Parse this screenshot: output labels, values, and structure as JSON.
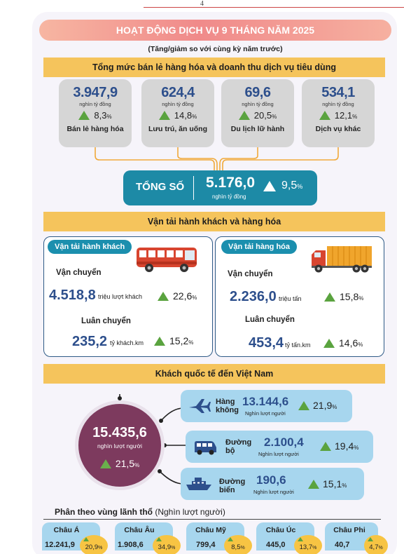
{
  "page_number": "4",
  "banner": "HOẠT ĐỘNG DỊCH VỤ 9 THÁNG NĂM 2025",
  "subtitle": "(Tăng/giảm so với cùng kỳ năm trước)",
  "retail": {
    "title": "Tổng mức bán lẻ hàng hóa và doanh thu dịch vụ tiêu dùng",
    "cards": [
      {
        "value": "3.947,9",
        "unit": "nghìn tỷ đồng",
        "pct": "8,3",
        "label": "Bán lẻ hàng hóa"
      },
      {
        "value": "624,4",
        "unit": "nghìn tỷ đồng",
        "pct": "14,8",
        "label": "Lưu trú, ăn uống"
      },
      {
        "value": "69,6",
        "unit": "nghìn tỷ đồng",
        "pct": "20,5",
        "label": "Du lịch lữ hành"
      },
      {
        "value": "534,1",
        "unit": "nghìn tỷ đồng",
        "pct": "12,1",
        "label": "Dịch vụ khác"
      }
    ],
    "total": {
      "label": "TỔNG SỐ",
      "value": "5.176,0",
      "unit": "nghìn tỷ đồng",
      "pct": "9,5"
    }
  },
  "transport": {
    "title": "Vận tải hành khách và hàng hóa",
    "passenger": {
      "label": "Vận tải hành khách",
      "carry_label": "Vận chuyển",
      "carry_value": "4.518,8",
      "carry_unit": "triệu lượt khách",
      "carry_pct": "22,6",
      "rotation_label": "Luân chuyển",
      "rotation_value": "235,2",
      "rotation_unit": "tỷ khách.km",
      "rotation_pct": "15,2"
    },
    "cargo": {
      "label": "Vận tải hàng hóa",
      "carry_label": "Vận chuyển",
      "carry_value": "2.236,0",
      "carry_unit": "triệu tấn",
      "carry_pct": "15,8",
      "rotation_label": "Luân chuyển",
      "rotation_value": "453,4",
      "rotation_unit": "tỷ tấn.km",
      "rotation_pct": "14,6"
    }
  },
  "visitors": {
    "title": "Khách quốc tế đến Việt Nam",
    "total_value": "15.435,6",
    "total_unit": "nghìn lượt người",
    "total_pct": "21,5",
    "modes": [
      {
        "label_1": "Hàng",
        "label_2": "không",
        "value": "13.144,6",
        "unit": "Nghìn lượt người",
        "pct": "21,9",
        "icon": "airplane-icon"
      },
      {
        "label_1": "Đường",
        "label_2": "bộ",
        "value": "2.100,4",
        "unit": "Nghìn lượt người",
        "pct": "19,4",
        "icon": "van-icon"
      },
      {
        "label_1": "Đường",
        "label_2": "biển",
        "value": "190,6",
        "unit": "Nghìn lượt người",
        "pct": "15,1",
        "icon": "ship-icon"
      }
    ]
  },
  "regions": {
    "title": "Phân theo vùng lãnh thổ",
    "title_unit": "(Nghìn lượt người)",
    "items": [
      {
        "name": "Châu Á",
        "value": "12.241,9",
        "pct": "20,9"
      },
      {
        "name": "Châu Âu",
        "value": "1.908,6",
        "pct": "34,9"
      },
      {
        "name": "Châu Mỹ",
        "value": "799,4",
        "pct": "8,5"
      },
      {
        "name": "Châu Úc",
        "value": "445,0",
        "pct": "13,7"
      },
      {
        "name": "Châu Phi",
        "value": "40,7",
        "pct": "4,7"
      }
    ]
  },
  "colors": {
    "accent": "#f5c45c",
    "teal": "#1d8aa6",
    "navy": "#2d4f8c",
    "plum": "#7d3a5e",
    "green": "#5aa33f",
    "lightblue": "#a7d6ee"
  }
}
